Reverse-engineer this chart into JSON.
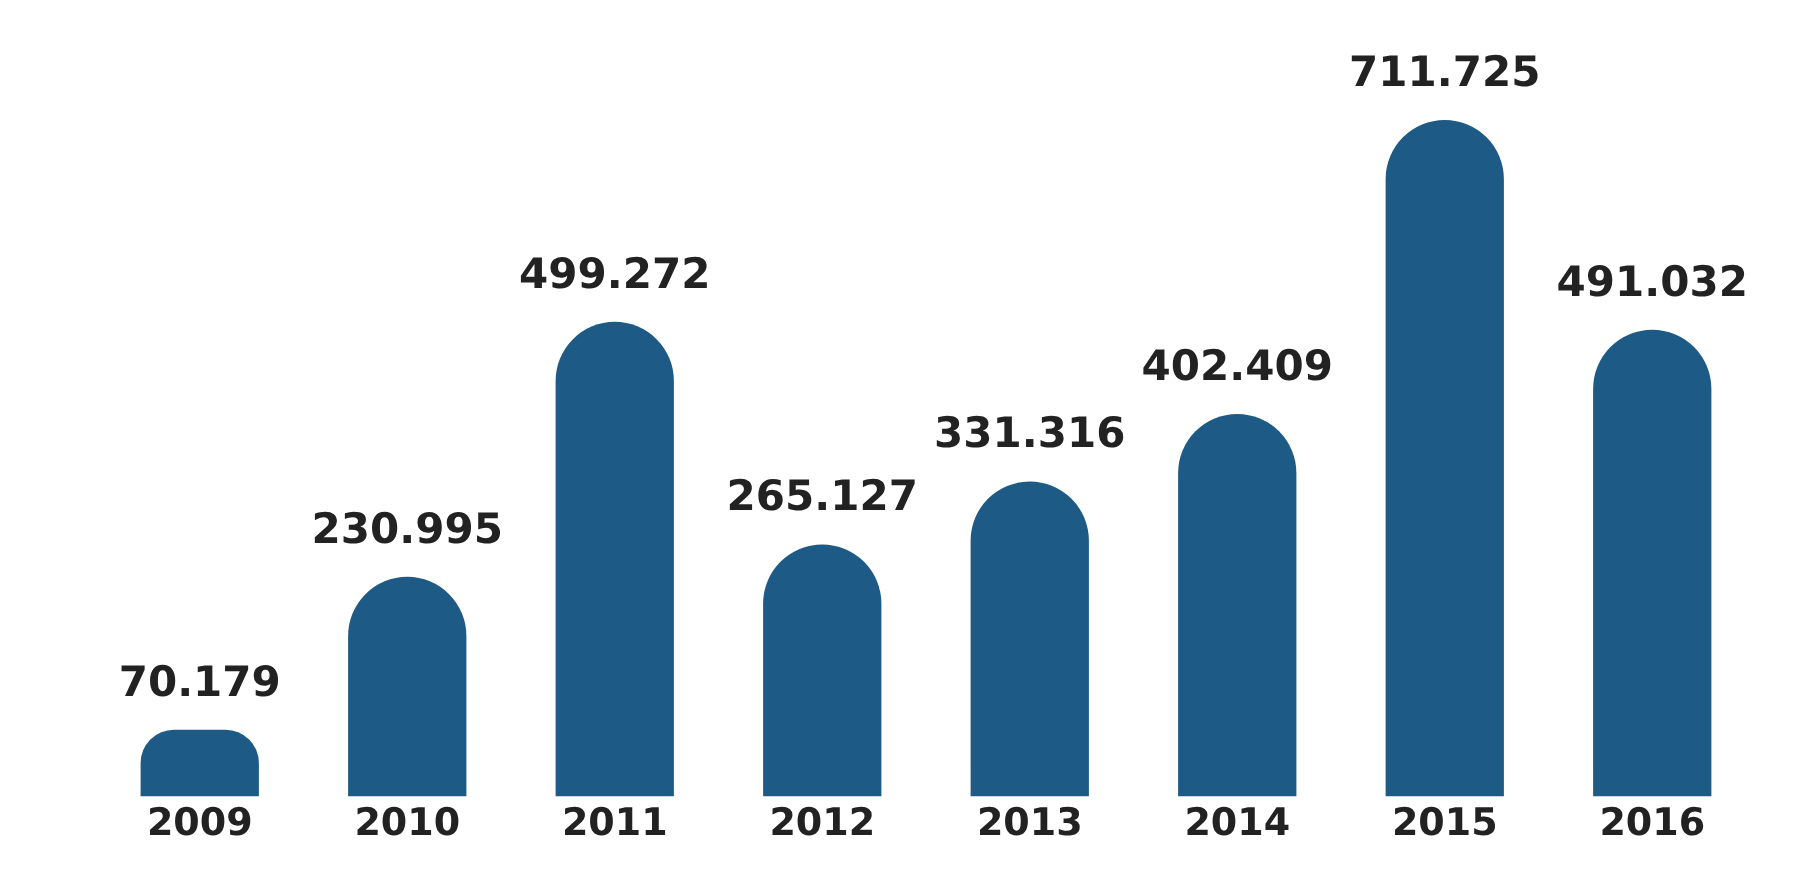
{
  "chart_data": {
    "type": "bar",
    "categories": [
      "2009",
      "2010",
      "2011",
      "2012",
      "2013",
      "2014",
      "2015",
      "2016"
    ],
    "values": [
      70179,
      230995,
      499272,
      265127,
      331316,
      402409,
      711725,
      491032
    ],
    "value_labels": [
      "70.179",
      "230.995",
      "499.272",
      "265.127",
      "331.316",
      "402.409",
      "711.725",
      "491.032"
    ],
    "color": "#1d5a86",
    "grid": false,
    "legend": false
  }
}
